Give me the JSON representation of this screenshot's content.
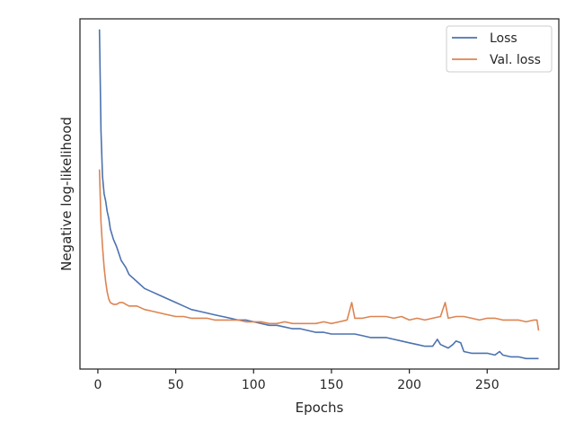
{
  "chart_data": {
    "type": "line",
    "xlabel": "Epochs",
    "ylabel": "Negative log-likelihood",
    "xlim": [
      -11.5,
      296
    ],
    "ylim": [
      0,
      100
    ],
    "x_ticks": [
      0,
      50,
      100,
      150,
      200,
      250
    ],
    "y_ticks_shown": false,
    "grid": false,
    "legend_position": "top-right",
    "series": [
      {
        "name": "Loss",
        "color": "#4c72b0",
        "x": [
          1,
          2,
          3,
          4,
          5,
          6,
          7,
          8,
          10,
          12,
          15,
          18,
          20,
          25,
          30,
          35,
          40,
          45,
          50,
          55,
          60,
          65,
          70,
          75,
          80,
          85,
          90,
          95,
          100,
          105,
          110,
          115,
          120,
          125,
          130,
          135,
          140,
          145,
          150,
          155,
          160,
          165,
          170,
          175,
          180,
          185,
          190,
          195,
          200,
          205,
          210,
          215,
          218,
          220,
          225,
          228,
          230,
          233,
          235,
          240,
          245,
          250,
          255,
          258,
          260,
          265,
          270,
          275,
          280,
          283
        ],
        "y": [
          97,
          68,
          55,
          50,
          48,
          45,
          43,
          40,
          37,
          35,
          31,
          29,
          27,
          25,
          23,
          22,
          21,
          20,
          19,
          18,
          17,
          16.5,
          16,
          15.5,
          15,
          14.5,
          14,
          14,
          13.5,
          13,
          12.5,
          12.5,
          12,
          11.5,
          11.5,
          11,
          10.5,
          10.5,
          10,
          10,
          10,
          10,
          9.5,
          9,
          9,
          9,
          8.5,
          8,
          7.5,
          7,
          6.5,
          6.5,
          8.5,
          7,
          6,
          7,
          8,
          7.5,
          5,
          4.5,
          4.5,
          4.5,
          4,
          5,
          4,
          3.5,
          3.5,
          3,
          3,
          3
        ]
      },
      {
        "name": "Val. loss",
        "color": "#dd8452",
        "x": [
          1,
          2,
          3,
          4,
          5,
          6,
          7,
          8,
          10,
          12,
          14,
          16,
          18,
          20,
          25,
          30,
          35,
          40,
          45,
          50,
          55,
          60,
          65,
          70,
          75,
          80,
          85,
          90,
          95,
          100,
          105,
          110,
          115,
          120,
          125,
          130,
          135,
          140,
          145,
          150,
          155,
          160,
          163,
          165,
          170,
          175,
          180,
          185,
          190,
          195,
          200,
          205,
          210,
          215,
          220,
          223,
          225,
          230,
          235,
          240,
          245,
          250,
          255,
          260,
          265,
          270,
          275,
          280,
          282,
          283
        ],
        "y": [
          57,
          42,
          35,
          29,
          25,
          22,
          20,
          19,
          18.5,
          18.5,
          19,
          19,
          18.5,
          18,
          18,
          17,
          16.5,
          16,
          15.5,
          15,
          15,
          14.5,
          14.5,
          14.5,
          14,
          14,
          14,
          14,
          13.5,
          13.5,
          13.5,
          13,
          13,
          13.5,
          13,
          13,
          13,
          13,
          13.5,
          13,
          13.5,
          14,
          19,
          14.5,
          14.5,
          15,
          15,
          15,
          14.5,
          15,
          14,
          14.5,
          14,
          14.5,
          15,
          19,
          14.5,
          15,
          15,
          14.5,
          14,
          14.5,
          14.5,
          14,
          14,
          14,
          13.5,
          14,
          14,
          11
        ]
      }
    ]
  }
}
